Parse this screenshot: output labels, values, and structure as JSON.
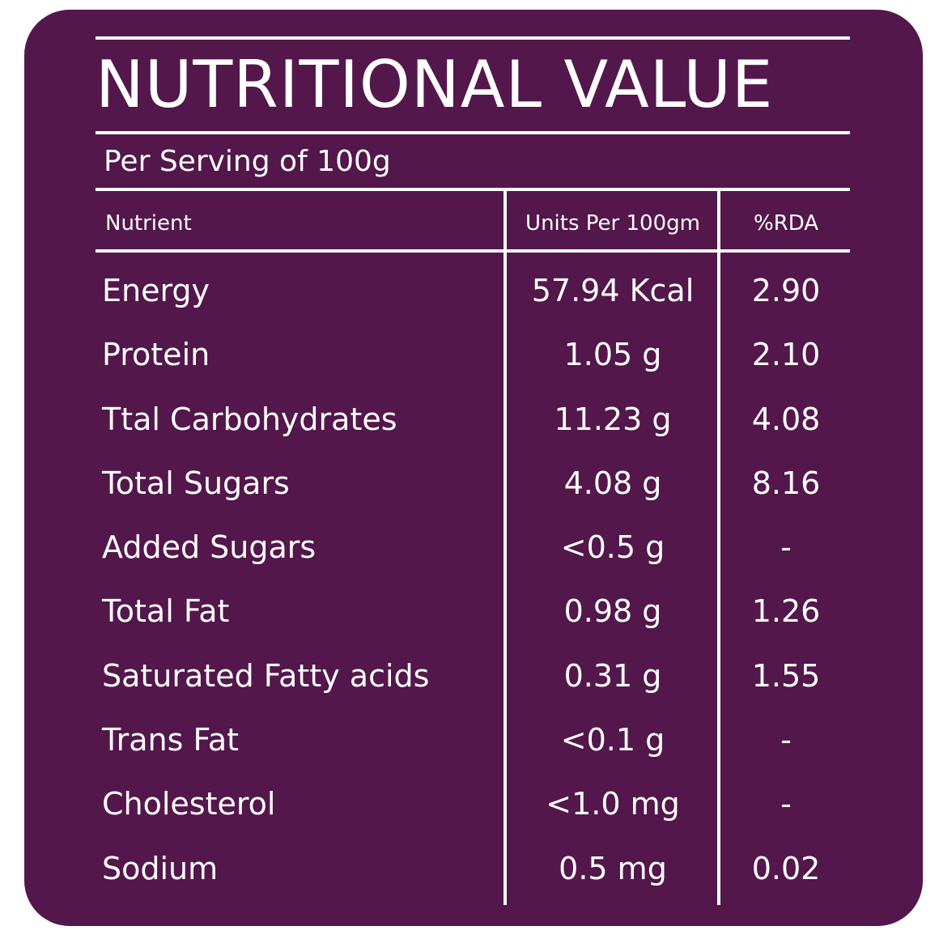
{
  "panel": {
    "title": "NUTRITIONAL VALUE",
    "subtitle": "Per Serving of 100g",
    "background": "#53174c",
    "text_color": "#ffffff"
  },
  "table": {
    "headers": {
      "nutrient": "Nutrient",
      "units": "Units Per 100gm",
      "rda": "%RDA"
    },
    "rows": [
      {
        "nutrient": "Energy",
        "units": "57.94 Kcal",
        "rda": "2.90"
      },
      {
        "nutrient": "Protein",
        "units": "1.05 g",
        "rda": "2.10"
      },
      {
        "nutrient": "Ttal Carbohydrates",
        "units": "11.23 g",
        "rda": "4.08"
      },
      {
        "nutrient": "Total Sugars",
        "units": "4.08 g",
        "rda": "8.16"
      },
      {
        "nutrient": "Added Sugars",
        "units": "<0.5 g",
        "rda": "-"
      },
      {
        "nutrient": "Total Fat",
        "units": "0.98 g",
        "rda": "1.26"
      },
      {
        "nutrient": "Saturated Fatty acids",
        "units": "0.31 g",
        "rda": "1.55"
      },
      {
        "nutrient": "Trans Fat",
        "units": "<0.1 g",
        "rda": "-"
      },
      {
        "nutrient": "Cholesterol",
        "units": "<1.0 mg",
        "rda": "-"
      },
      {
        "nutrient": "Sodium",
        "units": "0.5 mg",
        "rda": "0.02"
      }
    ]
  }
}
